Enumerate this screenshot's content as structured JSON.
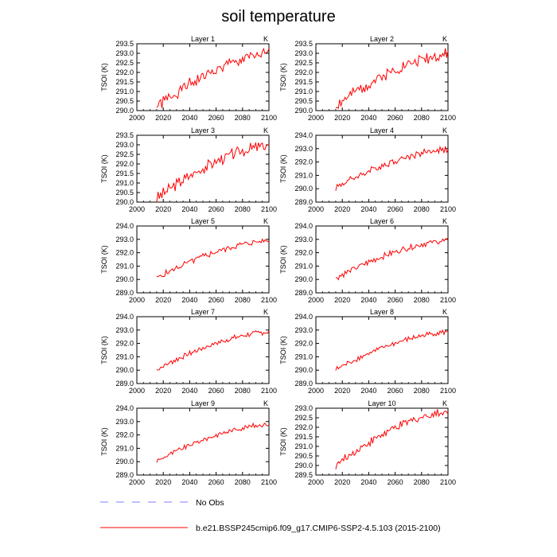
{
  "figure": {
    "title": "soil temperature",
    "legend": [
      {
        "label": "No Obs",
        "color": "#8080ff",
        "style": "dashed"
      },
      {
        "label": "b.e21.BSSP245cmip6.f09_g17.CMIP6-SSP2-4.5.103 (2015-2100)",
        "color": "#ff0000",
        "style": "solid"
      }
    ]
  },
  "chart_data": [
    {
      "type": "line",
      "title": "Layer 1",
      "units": "K",
      "ylabel": "TSOI  (K)",
      "xlim": [
        2000,
        2100
      ],
      "ylim": [
        290.0,
        293.5
      ],
      "xticks": [
        "2000",
        "2020",
        "2040",
        "2060",
        "2080",
        "2100"
      ],
      "yticks": [
        "290.0",
        "290.5",
        "291.0",
        "291.5",
        "292.0",
        "292.5",
        "293.0",
        "293.5"
      ],
      "series": [
        {
          "color": "#ff0000",
          "x_start": 2015,
          "x_end": 2100,
          "start": 290.2,
          "end": 292.95,
          "shape": 1.6,
          "noise": 0.28,
          "seed": 1
        }
      ]
    },
    {
      "type": "line",
      "title": "Layer 2",
      "units": "K",
      "ylabel": "TSOI  (K)",
      "xlim": [
        2000,
        2100
      ],
      "ylim": [
        290.0,
        293.5
      ],
      "xticks": [
        "2000",
        "2020",
        "2040",
        "2060",
        "2080",
        "2100"
      ],
      "yticks": [
        "290.0",
        "290.5",
        "291.0",
        "291.5",
        "292.0",
        "292.5",
        "293.0",
        "293.5"
      ],
      "series": [
        {
          "color": "#ff0000",
          "x_start": 2015,
          "x_end": 2100,
          "start": 290.25,
          "end": 292.95,
          "shape": 1.6,
          "noise": 0.26,
          "seed": 2
        }
      ]
    },
    {
      "type": "line",
      "title": "Layer 3",
      "units": "K",
      "ylabel": "TSOI  (K)",
      "xlim": [
        2000,
        2100
      ],
      "ylim": [
        290.0,
        293.5
      ],
      "xticks": [
        "2000",
        "2020",
        "2040",
        "2060",
        "2080",
        "2100"
      ],
      "yticks": [
        "290.0",
        "290.5",
        "291.0",
        "291.5",
        "292.0",
        "292.5",
        "293.0",
        "293.5"
      ],
      "series": [
        {
          "color": "#ff0000",
          "x_start": 2015,
          "x_end": 2100,
          "start": 290.2,
          "end": 292.95,
          "shape": 1.6,
          "noise": 0.26,
          "seed": 3
        }
      ]
    },
    {
      "type": "line",
      "title": "Layer 4",
      "units": "K",
      "ylabel": "TSOI  (K)",
      "xlim": [
        2000,
        2100
      ],
      "ylim": [
        289.0,
        294.0
      ],
      "xticks": [
        "2000",
        "2020",
        "2040",
        "2060",
        "2080",
        "2100"
      ],
      "yticks": [
        "289.0",
        "290.0",
        "291.0",
        "292.0",
        "293.0",
        "294.0"
      ],
      "series": [
        {
          "color": "#ff0000",
          "x_start": 2015,
          "x_end": 2100,
          "start": 290.1,
          "end": 292.95,
          "shape": 1.6,
          "noise": 0.22,
          "seed": 4
        }
      ]
    },
    {
      "type": "line",
      "title": "Layer 5",
      "units": "K",
      "ylabel": "TSOI  (K)",
      "xlim": [
        2000,
        2100
      ],
      "ylim": [
        289.0,
        294.0
      ],
      "xticks": [
        "2000",
        "2020",
        "2040",
        "2060",
        "2080",
        "2100"
      ],
      "yticks": [
        "289.0",
        "290.0",
        "291.0",
        "292.0",
        "293.0",
        "294.0"
      ],
      "series": [
        {
          "color": "#ff0000",
          "x_start": 2015,
          "x_end": 2100,
          "start": 290.1,
          "end": 292.9,
          "shape": 1.6,
          "noise": 0.2,
          "seed": 5
        }
      ]
    },
    {
      "type": "line",
      "title": "Layer 6",
      "units": "K",
      "ylabel": "TSOI  (K)",
      "xlim": [
        2000,
        2100
      ],
      "ylim": [
        289.0,
        294.0
      ],
      "xticks": [
        "2000",
        "2020",
        "2040",
        "2060",
        "2080",
        "2100"
      ],
      "yticks": [
        "289.0",
        "290.0",
        "291.0",
        "292.0",
        "293.0",
        "294.0"
      ],
      "series": [
        {
          "color": "#ff0000",
          "x_start": 2015,
          "x_end": 2100,
          "start": 290.1,
          "end": 292.9,
          "shape": 1.6,
          "noise": 0.19,
          "seed": 6
        }
      ]
    },
    {
      "type": "line",
      "title": "Layer 7",
      "units": "K",
      "ylabel": "TSOI  (K)",
      "xlim": [
        2000,
        2100
      ],
      "ylim": [
        289.0,
        294.0
      ],
      "xticks": [
        "2000",
        "2020",
        "2040",
        "2060",
        "2080",
        "2100"
      ],
      "yticks": [
        "289.0",
        "290.0",
        "291.0",
        "292.0",
        "293.0",
        "294.0"
      ],
      "series": [
        {
          "color": "#ff0000",
          "x_start": 2015,
          "x_end": 2100,
          "start": 290.05,
          "end": 292.85,
          "shape": 1.6,
          "noise": 0.17,
          "seed": 7
        }
      ]
    },
    {
      "type": "line",
      "title": "Layer 8",
      "units": "K",
      "ylabel": "TSOI  (K)",
      "xlim": [
        2000,
        2100
      ],
      "ylim": [
        289.0,
        294.0
      ],
      "xticks": [
        "2000",
        "2020",
        "2040",
        "2060",
        "2080",
        "2100"
      ],
      "yticks": [
        "289.0",
        "290.0",
        "291.0",
        "292.0",
        "293.0",
        "294.0"
      ],
      "series": [
        {
          "color": "#ff0000",
          "x_start": 2015,
          "x_end": 2100,
          "start": 290.05,
          "end": 292.85,
          "shape": 1.6,
          "noise": 0.16,
          "seed": 8
        }
      ]
    },
    {
      "type": "line",
      "title": "Layer 9",
      "units": "K",
      "ylabel": "TSOI  (K)",
      "xlim": [
        2000,
        2100
      ],
      "ylim": [
        289.0,
        294.0
      ],
      "xticks": [
        "2000",
        "2020",
        "2040",
        "2060",
        "2080",
        "2100"
      ],
      "yticks": [
        "289.0",
        "290.0",
        "291.0",
        "292.0",
        "293.0",
        "294.0"
      ],
      "series": [
        {
          "color": "#ff0000",
          "x_start": 2015,
          "x_end": 2100,
          "start": 290.05,
          "end": 292.8,
          "shape": 1.6,
          "noise": 0.15,
          "seed": 9
        }
      ]
    },
    {
      "type": "line",
      "title": "Layer 10",
      "units": "K",
      "ylabel": "TSOI  (K)",
      "xlim": [
        2000,
        2100
      ],
      "ylim": [
        289.5,
        293.0
      ],
      "xticks": [
        "2000",
        "2020",
        "2040",
        "2060",
        "2080",
        "2100"
      ],
      "yticks": [
        "289.5",
        "290.0",
        "290.5",
        "291.0",
        "291.5",
        "292.0",
        "292.5",
        "293.0"
      ],
      "series": [
        {
          "color": "#ff0000",
          "x_start": 2015,
          "x_end": 2100,
          "start": 290.0,
          "end": 292.8,
          "shape": 1.6,
          "noise": 0.18,
          "seed": 10
        }
      ]
    }
  ]
}
